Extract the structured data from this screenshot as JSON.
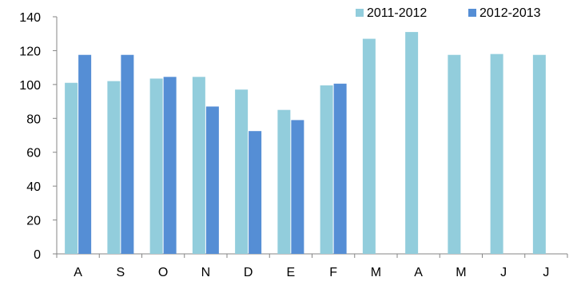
{
  "chart_data": {
    "type": "bar",
    "categories": [
      "A",
      "S",
      "O",
      "N",
      "D",
      "E",
      "F",
      "M",
      "A",
      "M",
      "J",
      "J"
    ],
    "series": [
      {
        "name": "2011-2012",
        "color": "#92CDDC",
        "values": [
          101,
          102,
          103.5,
          104.5,
          97,
          85,
          99.5,
          127,
          131,
          117.5,
          118,
          117.5
        ]
      },
      {
        "name": "2012-2013",
        "color": "#558ED5",
        "values": [
          117.5,
          117.5,
          104.5,
          87,
          72.5,
          79,
          100.5,
          null,
          null,
          null,
          null,
          null
        ]
      }
    ],
    "ylim": [
      0,
      140
    ],
    "yticks": [
      0,
      20,
      40,
      60,
      80,
      100,
      120,
      140
    ],
    "grid": false,
    "legend_position": "top-right",
    "title": "",
    "xlabel": "",
    "ylabel": ""
  }
}
